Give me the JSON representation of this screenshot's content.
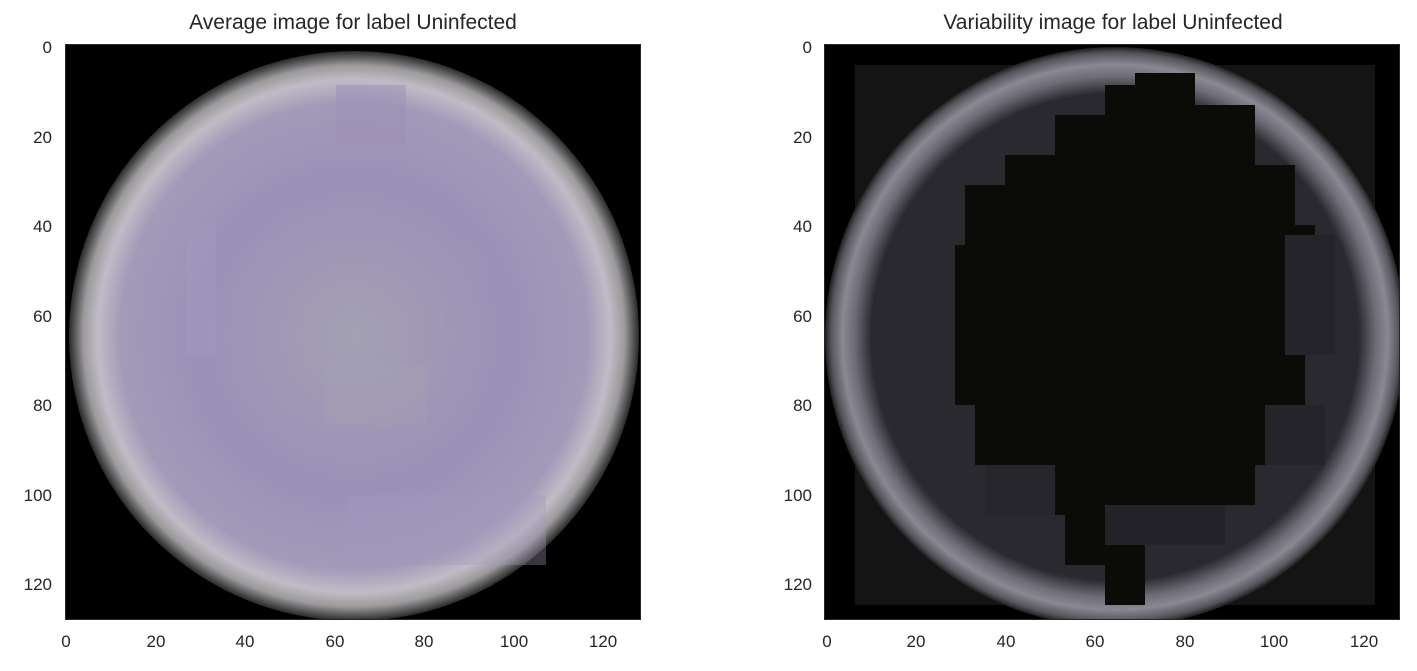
{
  "figure": {
    "panels": [
      {
        "title": "Average image for label Uninfected",
        "yticks": [
          "0",
          "20",
          "40",
          "60",
          "80",
          "100",
          "120"
        ],
        "xticks": [
          "0",
          "20",
          "40",
          "60",
          "80",
          "100",
          "120"
        ],
        "image_colors": {
          "center": "#a49fb5",
          "mid": "#9a8fb6",
          "rim": "#c3bfc9",
          "edge": "#6c6b6b",
          "background": "#000000"
        }
      },
      {
        "title": "Variability image for label Uninfected",
        "yticks": [
          "0",
          "20",
          "40",
          "60",
          "80",
          "100",
          "120"
        ],
        "xticks": [
          "0",
          "20",
          "40",
          "60",
          "80",
          "100",
          "120"
        ],
        "image_colors": {
          "center": "#0b0b08",
          "inner": "#2b2a33",
          "ring": "#6f6d76",
          "ring_light": "#8a8891",
          "background": "#000000"
        }
      }
    ]
  }
}
